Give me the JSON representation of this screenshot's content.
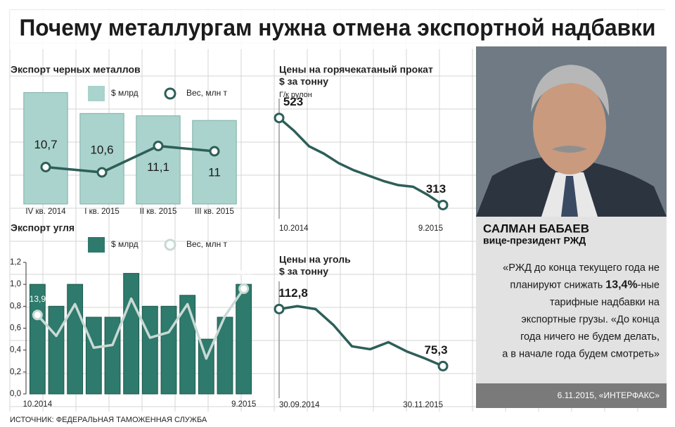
{
  "title": "Почему металлургам нужна отмена экспортной надбавки",
  "source": "ИСТОЧНИК: ФЕДЕРАЛЬНАЯ ТАМОЖЕННАЯ СЛУЖБА",
  "chart_data": [
    {
      "type": "bar",
      "title": "Экспорт черных металлов",
      "categories": [
        "IV кв. 2014",
        "I кв. 2015",
        "II кв. 2015",
        "III кв. 2015"
      ],
      "ylim": [
        0,
        2.5
      ],
      "y2lim": [
        10,
        12.2
      ],
      "series": [
        {
          "name": "$ млрд",
          "type": "bar",
          "color": "#a9d3cc",
          "values": [
            2.4,
            1.95,
            1.9,
            1.8
          ]
        },
        {
          "name": "Вес, млн т",
          "type": "line",
          "axis": "y2",
          "color": "#2d5f58",
          "values": [
            10.7,
            10.6,
            11.1,
            11
          ],
          "value_labels": [
            "10,7",
            "10,6",
            "11,1",
            "11"
          ]
        }
      ]
    },
    {
      "type": "bar",
      "title": "Экспорт угля",
      "categories": [
        "10.2014",
        null,
        null,
        null,
        null,
        null,
        null,
        null,
        null,
        null,
        null,
        "9.2015"
      ],
      "ylim": [
        0,
        1.2
      ],
      "yticks": [
        {
          "value": 0,
          "label": "0,0"
        },
        {
          "value": 0.2,
          "label": "0,2"
        },
        {
          "value": 0.4,
          "label": "0,4"
        },
        {
          "value": 0.6,
          "label": "0,6"
        },
        {
          "value": 0.8,
          "label": "0,8"
        },
        {
          "value": 1.0,
          "label": "1,0"
        },
        {
          "value": 1.2,
          "label": "1,2"
        }
      ],
      "y2lim": [
        5.2,
        19.7
      ],
      "series": [
        {
          "name": "$ млрд",
          "type": "bar",
          "color": "#2e7a6c",
          "values": [
            1.0,
            0.8,
            1.0,
            0.7,
            0.7,
            1.1,
            0.8,
            0.8,
            0.9,
            0.5,
            0.7,
            1.0
          ]
        },
        {
          "name": "Вес, млн т",
          "type": "line",
          "axis": "y2",
          "color": "#c9d9d5",
          "values": [
            13.9,
            11.6,
            15.1,
            10.3,
            10.6,
            15.7,
            11.4,
            12.0,
            15.1,
            9.1,
            13.8,
            16.8
          ],
          "value_labels": [
            "13,9",
            null,
            null,
            null,
            null,
            null,
            null,
            null,
            null,
            null,
            null,
            "16,8"
          ]
        }
      ]
    },
    {
      "type": "line",
      "title": "Цены на горячекатаный прокат",
      "subtitle": "$ за тонну",
      "annotation": "Г/к рулон",
      "categories": [
        "10.2014",
        null,
        null,
        null,
        null,
        null,
        null,
        null,
        null,
        null,
        null,
        "9.2015"
      ],
      "ylim": [
        290,
        570
      ],
      "series": [
        {
          "color": "#2d5f58",
          "values": [
            523,
            492,
            455,
            437,
            414,
            397,
            384,
            371,
            361,
            357,
            337,
            313
          ],
          "value_labels": [
            "523",
            null,
            null,
            null,
            null,
            null,
            null,
            null,
            null,
            null,
            null,
            "313"
          ]
        }
      ]
    },
    {
      "type": "line",
      "title": "Цены на уголь",
      "subtitle": "$ за тонну",
      "categories": [
        "30.09.2014",
        null,
        null,
        null,
        null,
        null,
        null,
        null,
        null,
        "30.11.2015"
      ],
      "ylim": [
        57,
        131
      ],
      "series": [
        {
          "color": "#2d5f58",
          "values": [
            112.8,
            114.7,
            112.8,
            102.1,
            88.3,
            86.4,
            91.0,
            85.0,
            80.4,
            75.3
          ],
          "value_labels": [
            "112,8",
            null,
            null,
            null,
            null,
            null,
            null,
            null,
            null,
            "75,3"
          ]
        }
      ]
    }
  ],
  "profile": {
    "name": "САЛМАН БАБАЕВ",
    "position": "вице-президент РЖД",
    "quote": [
      [
        "«РЖД до конца текущего года не"
      ],
      [
        "планируют снижать ",
        "13,4%",
        "-ные"
      ],
      [
        "тарифные надбавки на"
      ],
      [
        "экспортные грузы. «До конца"
      ],
      [
        "года ничего не будем делать,"
      ],
      [
        "а в начале года будем смотреть»"
      ]
    ],
    "credit": "6.11.2015, «ИНТЕРФАКС»"
  }
}
